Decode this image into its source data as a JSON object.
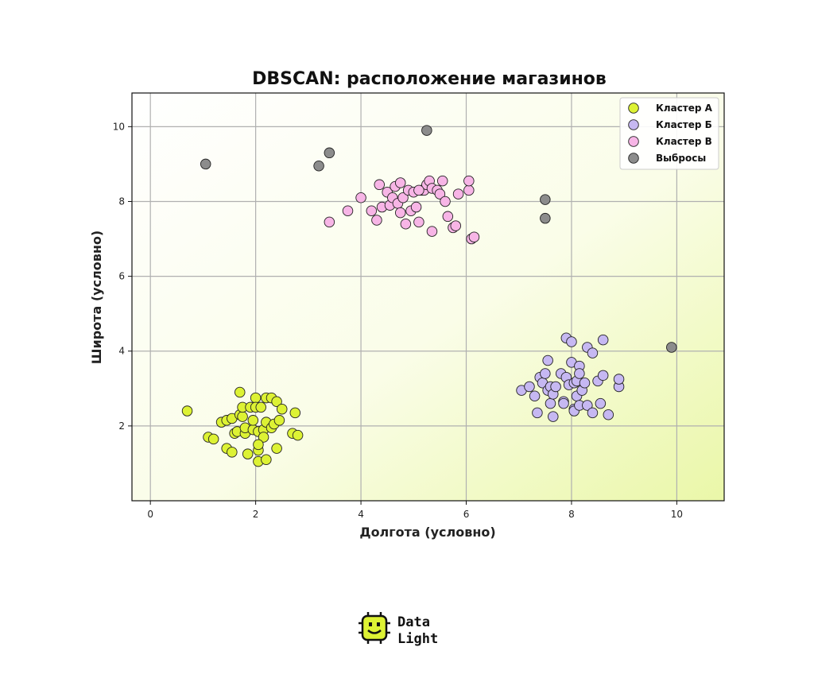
{
  "chart_data": {
    "type": "scatter",
    "title": "DBSCAN: расположение магазинов",
    "xlabel": "Долгота (условно)",
    "ylabel": "Широта (условно)",
    "xlim": [
      -0.35,
      10.9
    ],
    "ylim": [
      0,
      10.9
    ],
    "xticks": [
      0,
      2,
      4,
      6,
      8,
      10
    ],
    "yticks": [
      2,
      4,
      6,
      8,
      10
    ],
    "grid": true,
    "legend_position": "top-right",
    "series": [
      {
        "name": "Кластер A",
        "color": "#ddf234",
        "points": [
          [
            0.7,
            2.4
          ],
          [
            1.1,
            1.7
          ],
          [
            1.2,
            1.65
          ],
          [
            1.35,
            2.1
          ],
          [
            1.45,
            2.15
          ],
          [
            1.45,
            1.4
          ],
          [
            1.55,
            1.3
          ],
          [
            1.55,
            2.2
          ],
          [
            1.6,
            1.8
          ],
          [
            1.65,
            1.85
          ],
          [
            1.7,
            2.3
          ],
          [
            1.7,
            2.9
          ],
          [
            1.75,
            2.25
          ],
          [
            1.75,
            2.5
          ],
          [
            1.8,
            1.8
          ],
          [
            1.8,
            1.95
          ],
          [
            1.85,
            1.25
          ],
          [
            1.9,
            2.5
          ],
          [
            1.95,
            1.9
          ],
          [
            1.95,
            2.15
          ],
          [
            2.0,
            2.75
          ],
          [
            2.0,
            2.5
          ],
          [
            2.05,
            1.35
          ],
          [
            2.05,
            1.85
          ],
          [
            2.05,
            1.05
          ],
          [
            2.1,
            2.5
          ],
          [
            2.15,
            1.9
          ],
          [
            2.15,
            1.7
          ],
          [
            2.2,
            2.1
          ],
          [
            2.2,
            1.1
          ],
          [
            2.2,
            2.75
          ],
          [
            2.3,
            1.95
          ],
          [
            2.3,
            2.75
          ],
          [
            2.35,
            2.05
          ],
          [
            2.4,
            2.65
          ],
          [
            2.4,
            1.4
          ],
          [
            2.45,
            2.15
          ],
          [
            2.5,
            2.45
          ],
          [
            2.7,
            1.8
          ],
          [
            2.75,
            2.35
          ],
          [
            2.8,
            1.75
          ],
          [
            2.05,
            1.5
          ]
        ]
      },
      {
        "name": "Кластер Б",
        "color": "#c6b8f2",
        "points": [
          [
            7.05,
            2.95
          ],
          [
            7.2,
            3.05
          ],
          [
            7.3,
            2.8
          ],
          [
            7.35,
            2.35
          ],
          [
            7.4,
            3.3
          ],
          [
            7.45,
            3.15
          ],
          [
            7.5,
            3.4
          ],
          [
            7.55,
            3.75
          ],
          [
            7.55,
            2.95
          ],
          [
            7.6,
            3.05
          ],
          [
            7.6,
            2.6
          ],
          [
            7.65,
            2.85
          ],
          [
            7.65,
            2.25
          ],
          [
            7.7,
            3.05
          ],
          [
            7.8,
            3.4
          ],
          [
            7.85,
            2.65
          ],
          [
            7.85,
            2.6
          ],
          [
            7.9,
            4.35
          ],
          [
            7.9,
            3.3
          ],
          [
            7.95,
            3.1
          ],
          [
            8.0,
            4.25
          ],
          [
            8.0,
            3.7
          ],
          [
            8.05,
            2.45
          ],
          [
            8.05,
            3.15
          ],
          [
            8.05,
            2.4
          ],
          [
            8.1,
            3.2
          ],
          [
            8.1,
            2.8
          ],
          [
            8.15,
            3.6
          ],
          [
            8.15,
            3.4
          ],
          [
            8.15,
            2.55
          ],
          [
            8.2,
            2.95
          ],
          [
            8.25,
            3.15
          ],
          [
            8.3,
            4.1
          ],
          [
            8.3,
            2.55
          ],
          [
            8.4,
            3.95
          ],
          [
            8.4,
            2.35
          ],
          [
            8.5,
            3.2
          ],
          [
            8.55,
            2.6
          ],
          [
            8.6,
            3.35
          ],
          [
            8.6,
            4.3
          ],
          [
            8.7,
            2.3
          ],
          [
            8.9,
            3.05
          ],
          [
            8.9,
            3.25
          ]
        ]
      },
      {
        "name": "Кластер В",
        "color": "#f7b5e6",
        "points": [
          [
            3.4,
            7.45
          ],
          [
            3.75,
            7.75
          ],
          [
            4.0,
            8.1
          ],
          [
            4.2,
            7.75
          ],
          [
            4.3,
            7.5
          ],
          [
            4.35,
            8.45
          ],
          [
            4.4,
            7.85
          ],
          [
            4.5,
            8.25
          ],
          [
            4.55,
            7.9
          ],
          [
            4.6,
            8.1
          ],
          [
            4.65,
            8.4
          ],
          [
            4.7,
            7.95
          ],
          [
            4.75,
            8.5
          ],
          [
            4.75,
            7.7
          ],
          [
            4.8,
            8.1
          ],
          [
            4.85,
            7.4
          ],
          [
            4.9,
            8.3
          ],
          [
            4.95,
            7.75
          ],
          [
            5.0,
            8.25
          ],
          [
            5.05,
            7.85
          ],
          [
            5.1,
            7.45
          ],
          [
            5.15,
            8.3
          ],
          [
            5.2,
            8.3
          ],
          [
            5.25,
            8.45
          ],
          [
            5.3,
            8.55
          ],
          [
            5.35,
            8.35
          ],
          [
            5.35,
            7.2
          ],
          [
            5.45,
            8.3
          ],
          [
            5.5,
            8.2
          ],
          [
            5.55,
            8.55
          ],
          [
            5.6,
            8.0
          ],
          [
            5.65,
            7.6
          ],
          [
            5.75,
            7.3
          ],
          [
            5.8,
            7.35
          ],
          [
            5.85,
            8.2
          ],
          [
            6.05,
            8.3
          ],
          [
            6.05,
            8.55
          ],
          [
            6.1,
            7.0
          ],
          [
            6.15,
            7.05
          ],
          [
            5.1,
            8.3
          ]
        ]
      },
      {
        "name": "Выбросы",
        "color": "#8c8c8c",
        "points": [
          [
            1.05,
            9.0
          ],
          [
            3.2,
            8.95
          ],
          [
            3.4,
            9.3
          ],
          [
            5.25,
            9.9
          ],
          [
            7.5,
            8.05
          ],
          [
            7.5,
            7.55
          ],
          [
            9.9,
            4.1
          ]
        ]
      }
    ]
  },
  "logo": {
    "line1": "Data",
    "line2": "Light"
  }
}
